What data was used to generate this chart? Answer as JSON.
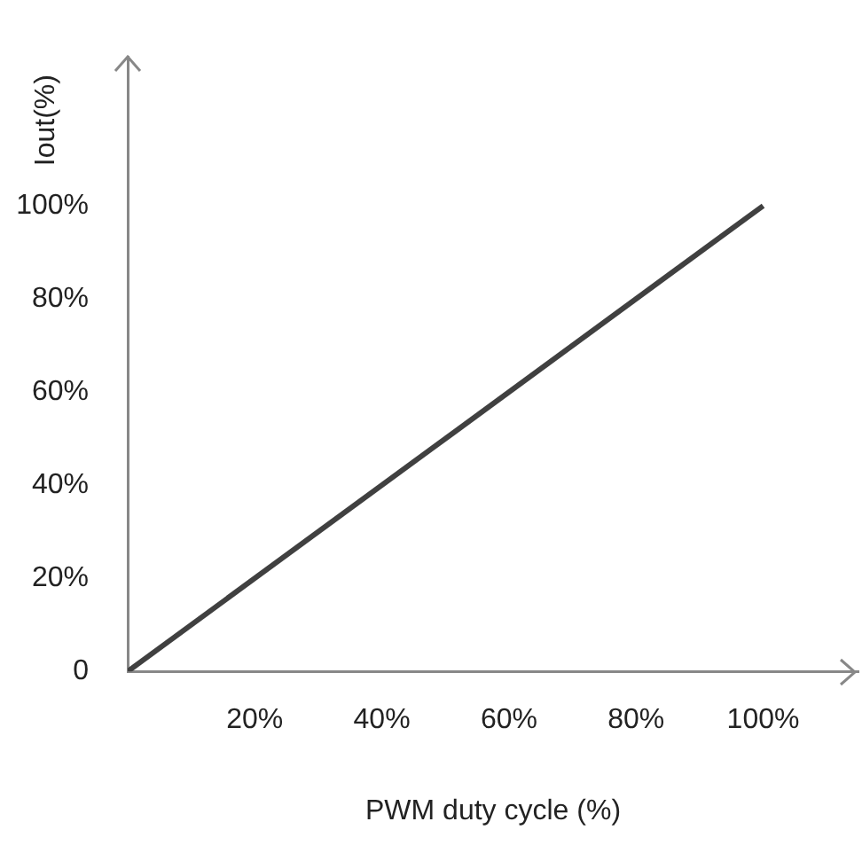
{
  "chart_data": {
    "type": "line",
    "xlabel": "PWM duty cycle (%)",
    "ylabel": "Iout(%)",
    "x": [
      0,
      100
    ],
    "series": [
      {
        "color": "#404040",
        "values": [
          0,
          100
        ]
      }
    ],
    "xlim": [
      0,
      115
    ],
    "ylim": [
      0,
      132
    ],
    "xticks": [
      {
        "value": 20,
        "label": "20%"
      },
      {
        "value": 40,
        "label": "40%"
      },
      {
        "value": 60,
        "label": "60%"
      },
      {
        "value": 80,
        "label": "80%"
      },
      {
        "value": 100,
        "label": "100%"
      }
    ],
    "yticks": [
      {
        "value": 0,
        "label": "0"
      },
      {
        "value": 20,
        "label": "20%"
      },
      {
        "value": 40,
        "label": "40%"
      },
      {
        "value": 60,
        "label": "60%"
      },
      {
        "value": 80,
        "label": "80%"
      },
      {
        "value": 100,
        "label": "100%"
      }
    ],
    "grid": false,
    "legend": false,
    "marker": "none",
    "line_style": "solid"
  }
}
